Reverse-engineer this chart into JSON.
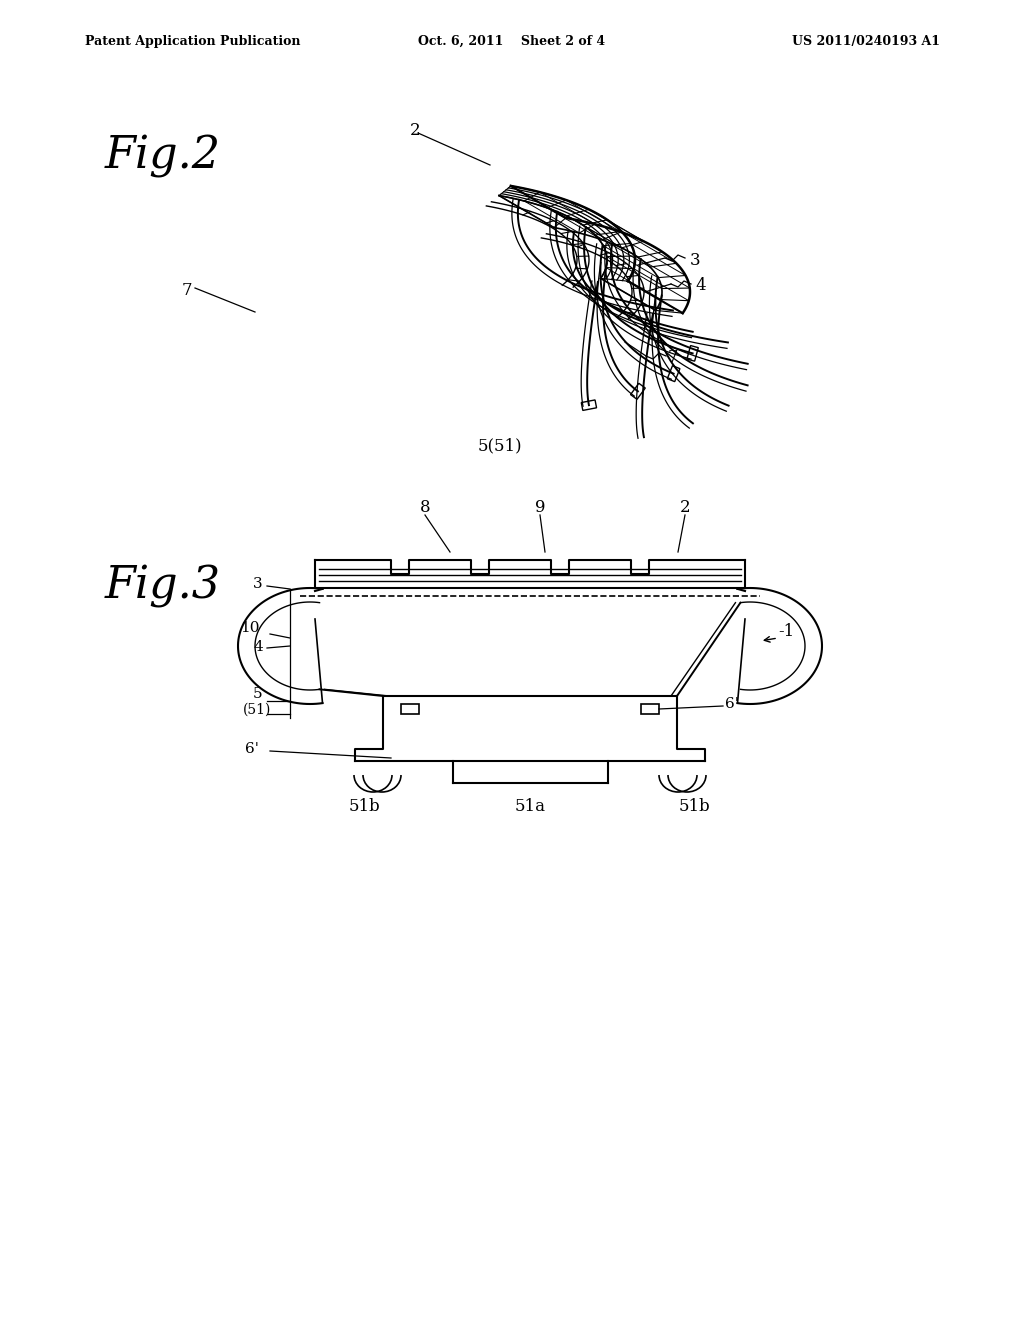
{
  "background_color": "#ffffff",
  "header_left": "Patent Application Publication",
  "header_center": "Oct. 6, 2011    Sheet 2 of 4",
  "header_right": "US 2011/0240193 A1",
  "fig2_label": "Fig.2",
  "fig3_label": "Fig.3",
  "text_color": "#000000",
  "line_color": "#000000",
  "dashed_color": "#000000"
}
